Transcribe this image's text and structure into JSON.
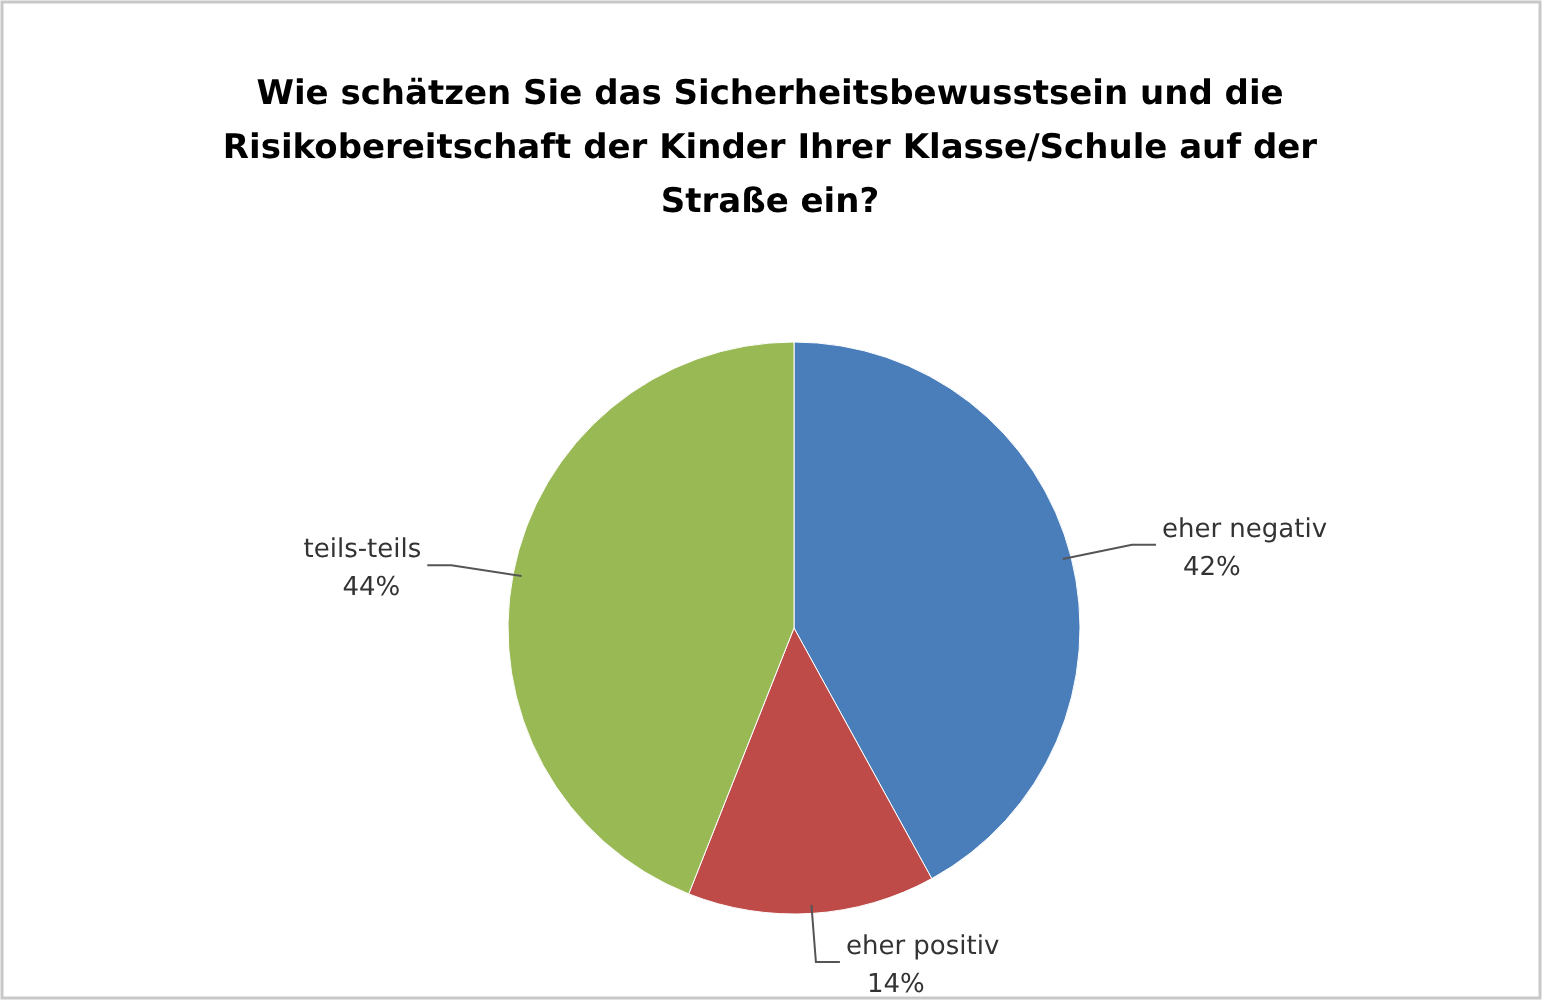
{
  "chart_data": {
    "type": "pie",
    "title": "Wie schätzen Sie das Sicherheitsbewusstsein und die Risikobereitschaft der Kinder Ihrer Klasse/Schule auf der Straße ein?",
    "categories": [
      "eher negativ",
      "eher positiv",
      "teils-teils"
    ],
    "values": [
      42,
      14,
      44
    ],
    "colors": [
      "#4a7ebb",
      "#be4b48",
      "#98b954"
    ],
    "value_labels": [
      "42%",
      "14%",
      "44%"
    ]
  }
}
